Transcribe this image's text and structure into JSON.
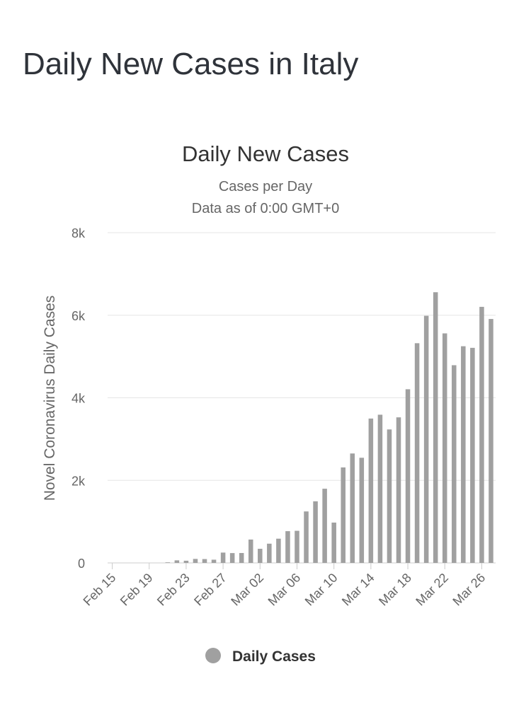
{
  "page": {
    "title": "Daily New Cases in Italy"
  },
  "chart_data": {
    "type": "bar",
    "title": "Daily New Cases",
    "subtitle": [
      "Cases per Day",
      "Data as of 0:00 GMT+0"
    ],
    "xlabel": "",
    "ylabel": "Novel Coronavirus Daily Cases",
    "ylim": [
      0,
      8000
    ],
    "yticks": [
      0,
      2000,
      4000,
      6000,
      8000
    ],
    "ytick_labels": [
      "0",
      "2k",
      "4k",
      "6k",
      "8k"
    ],
    "xtick_labels": [
      "Feb 15",
      "Feb 19",
      "Feb 23",
      "Feb 27",
      "Mar 02",
      "Mar 06",
      "Mar 10",
      "Mar 14",
      "Mar 18",
      "Mar 22",
      "Mar 26"
    ],
    "grid": true,
    "legend_position": "bottom-center",
    "categories": [
      "Feb 15",
      "Feb 16",
      "Feb 17",
      "Feb 18",
      "Feb 19",
      "Feb 20",
      "Feb 21",
      "Feb 22",
      "Feb 23",
      "Feb 24",
      "Feb 25",
      "Feb 26",
      "Feb 27",
      "Feb 28",
      "Feb 29",
      "Mar 01",
      "Mar 02",
      "Mar 03",
      "Mar 04",
      "Mar 05",
      "Mar 06",
      "Mar 07",
      "Mar 08",
      "Mar 09",
      "Mar 10",
      "Mar 11",
      "Mar 12",
      "Mar 13",
      "Mar 14",
      "Mar 15",
      "Mar 16",
      "Mar 17",
      "Mar 18",
      "Mar 19",
      "Mar 20",
      "Mar 21",
      "Mar 22",
      "Mar 23",
      "Mar 24",
      "Mar 25",
      "Mar 26",
      "Mar 27"
    ],
    "series": [
      {
        "name": "Daily Cases",
        "color": "#a0a0a0",
        "values": [
          0,
          0,
          0,
          0,
          0,
          0,
          14,
          62,
          53,
          97,
          93,
          78,
          250,
          238,
          240,
          566,
          342,
          466,
          587,
          769,
          778,
          1247,
          1492,
          1797,
          977,
          2313,
          2651,
          2547,
          3497,
          3590,
          3233,
          3526,
          4207,
          5322,
          5986,
          6557,
          5560,
          4789,
          5249,
          5210,
          6203,
          5909
        ]
      }
    ]
  }
}
